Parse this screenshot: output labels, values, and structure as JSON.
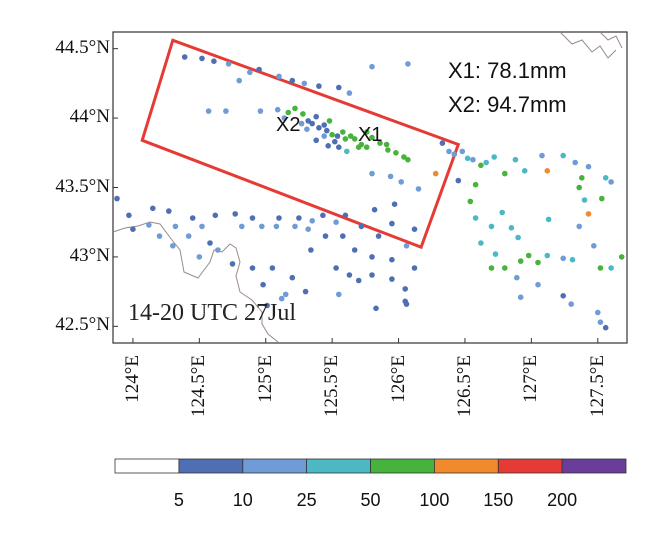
{
  "map": {
    "time_label": "14-20 UTC 27Jul",
    "annotations": [
      {
        "id": "x1",
        "text": "X1: 78.1mm"
      },
      {
        "id": "x2",
        "text": "X2: 94.7mm"
      }
    ],
    "point_labels": [
      "X2",
      "X1"
    ],
    "lat_ticks": [
      "44.5°N",
      "44°N",
      "43.5°N",
      "43°N",
      "42.5°N"
    ],
    "lat_values": [
      44.5,
      44.0,
      43.5,
      43.0,
      42.5
    ],
    "lon_ticks": [
      "124°E",
      "124.5°E",
      "125°E",
      "125.5°E",
      "126°E",
      "126.5°E",
      "127°E",
      "127.5°E"
    ],
    "lon_values": [
      124.0,
      124.5,
      125.0,
      125.5,
      126.0,
      126.5,
      127.0,
      127.5
    ],
    "extent": {
      "lon_min": 123.85,
      "lon_max": 127.72,
      "lat_min": 42.38,
      "lat_max": 44.62
    },
    "box_corners_lonlat": [
      [
        124.3,
        44.56
      ],
      [
        126.45,
        43.81
      ],
      [
        126.17,
        43.07
      ],
      [
        124.07,
        43.84
      ]
    ],
    "colorbar": {
      "thresholds": [
        "5",
        "10",
        "25",
        "50",
        "100",
        "150",
        "200"
      ],
      "colors": [
        "#ffffff",
        "#4f6fb5",
        "#6f9bd6",
        "#4cb8c4",
        "#47b33c",
        "#f08a2c",
        "#e63a35",
        "#6a3d9a"
      ]
    },
    "stations": [
      [
        124.39,
        44.44,
        1
      ],
      [
        124.52,
        44.43,
        1
      ],
      [
        124.61,
        44.41,
        1
      ],
      [
        124.72,
        44.39,
        2
      ],
      [
        124.88,
        44.33,
        2
      ],
      [
        124.95,
        44.35,
        1
      ],
      [
        125.1,
        44.3,
        2
      ],
      [
        125.2,
        44.27,
        1
      ],
      [
        125.29,
        44.25,
        2
      ],
      [
        125.4,
        44.23,
        1
      ],
      [
        125.55,
        44.22,
        1
      ],
      [
        125.63,
        44.18,
        2
      ],
      [
        125.8,
        44.37,
        2
      ],
      [
        126.07,
        44.39,
        2
      ],
      [
        124.8,
        44.27,
        2
      ],
      [
        124.57,
        44.05,
        2
      ],
      [
        124.7,
        44.05,
        2
      ],
      [
        124.96,
        44.05,
        2
      ],
      [
        125.09,
        44.06,
        2
      ],
      [
        125.14,
        44.0,
        2
      ],
      [
        125.17,
        44.04,
        4
      ],
      [
        125.22,
        44.07,
        4
      ],
      [
        125.28,
        44.03,
        4
      ],
      [
        125.32,
        43.98,
        1
      ],
      [
        125.35,
        43.96,
        1
      ],
      [
        125.38,
        44.01,
        1
      ],
      [
        125.4,
        43.93,
        1
      ],
      [
        125.44,
        43.95,
        1
      ],
      [
        125.46,
        43.91,
        1
      ],
      [
        125.48,
        43.98,
        4
      ],
      [
        125.5,
        43.88,
        4
      ],
      [
        125.52,
        43.83,
        1
      ],
      [
        125.54,
        43.87,
        1
      ],
      [
        125.55,
        43.79,
        1
      ],
      [
        125.58,
        43.9,
        4
      ],
      [
        125.6,
        43.85,
        4
      ],
      [
        125.64,
        43.87,
        4
      ],
      [
        125.67,
        43.85,
        4
      ],
      [
        125.7,
        43.79,
        4
      ],
      [
        125.72,
        43.81,
        4
      ],
      [
        125.76,
        43.9,
        4
      ],
      [
        125.8,
        43.86,
        4
      ],
      [
        125.86,
        43.82,
        4
      ],
      [
        125.92,
        43.77,
        4
      ],
      [
        125.98,
        43.75,
        4
      ],
      [
        126.04,
        43.72,
        4
      ],
      [
        126.07,
        43.7,
        4
      ],
      [
        125.31,
        43.92,
        2
      ],
      [
        125.27,
        43.96,
        2
      ],
      [
        125.44,
        43.87,
        2
      ],
      [
        125.61,
        43.76,
        3
      ],
      [
        125.8,
        43.6,
        2
      ],
      [
        125.94,
        43.58,
        2
      ],
      [
        126.02,
        43.54,
        2
      ],
      [
        126.15,
        43.49,
        2
      ],
      [
        125.76,
        43.79,
        4
      ],
      [
        125.91,
        43.81,
        4
      ],
      [
        125.38,
        43.84,
        1
      ],
      [
        125.47,
        43.8,
        1
      ],
      [
        126.33,
        43.82,
        1
      ],
      [
        126.38,
        43.76,
        2
      ],
      [
        126.42,
        43.74,
        2
      ],
      [
        126.48,
        43.76,
        2
      ],
      [
        126.52,
        43.71,
        3
      ],
      [
        126.56,
        43.7,
        2
      ],
      [
        126.62,
        43.66,
        4
      ],
      [
        126.66,
        43.68,
        3
      ],
      [
        126.72,
        43.72,
        3
      ],
      [
        126.8,
        43.6,
        4
      ],
      [
        126.88,
        43.7,
        3
      ],
      [
        126.95,
        43.62,
        3
      ],
      [
        127.08,
        43.73,
        2
      ],
      [
        127.24,
        43.73,
        3
      ],
      [
        127.33,
        43.68,
        2
      ],
      [
        127.43,
        43.65,
        2
      ],
      [
        127.12,
        43.62,
        5
      ],
      [
        127.38,
        43.57,
        4
      ],
      [
        127.36,
        43.5,
        4
      ],
      [
        127.56,
        43.57,
        3
      ],
      [
        127.6,
        43.54,
        2
      ],
      [
        127.53,
        43.42,
        4
      ],
      [
        127.4,
        43.41,
        3
      ],
      [
        127.43,
        43.31,
        5
      ],
      [
        126.28,
        43.6,
        5
      ],
      [
        126.58,
        43.52,
        4
      ],
      [
        126.45,
        43.55,
        1
      ],
      [
        126.54,
        43.4,
        4
      ],
      [
        126.58,
        43.28,
        3
      ],
      [
        126.7,
        43.22,
        3
      ],
      [
        126.78,
        43.32,
        3
      ],
      [
        126.85,
        43.21,
        3
      ],
      [
        126.9,
        43.14,
        3
      ],
      [
        126.62,
        43.1,
        3
      ],
      [
        126.73,
        43.02,
        3
      ],
      [
        126.8,
        42.92,
        4
      ],
      [
        126.92,
        42.97,
        4
      ],
      [
        126.98,
        43.01,
        4
      ],
      [
        127.05,
        42.96,
        4
      ],
      [
        127.12,
        43.01,
        3
      ],
      [
        127.24,
        42.99,
        2
      ],
      [
        127.31,
        42.98,
        3
      ],
      [
        127.52,
        42.92,
        4
      ],
      [
        127.6,
        42.92,
        3
      ],
      [
        127.47,
        43.08,
        2
      ],
      [
        127.68,
        43.0,
        4
      ],
      [
        126.7,
        42.92,
        4
      ],
      [
        126.89,
        42.85,
        2
      ],
      [
        127.05,
        42.8,
        2
      ],
      [
        126.92,
        42.71,
        2
      ],
      [
        127.24,
        42.72,
        1
      ],
      [
        127.3,
        42.66,
        2
      ],
      [
        127.5,
        42.6,
        2
      ],
      [
        127.52,
        42.53,
        2
      ],
      [
        127.56,
        42.49,
        1
      ],
      [
        127.13,
        43.27,
        3
      ],
      [
        127.36,
        43.22,
        2
      ],
      [
        123.88,
        43.42,
        1
      ],
      [
        123.97,
        43.3,
        1
      ],
      [
        124.15,
        43.35,
        1
      ],
      [
        124.27,
        43.33,
        1
      ],
      [
        124.45,
        43.28,
        1
      ],
      [
        124.62,
        43.3,
        1
      ],
      [
        124.77,
        43.31,
        1
      ],
      [
        124.9,
        43.28,
        1
      ],
      [
        125.1,
        43.28,
        1
      ],
      [
        125.25,
        43.28,
        1
      ],
      [
        125.35,
        43.26,
        2
      ],
      [
        125.43,
        43.3,
        1
      ],
      [
        125.53,
        43.25,
        2
      ],
      [
        125.6,
        43.3,
        1
      ],
      [
        125.72,
        43.22,
        1
      ],
      [
        125.82,
        43.34,
        1
      ],
      [
        125.97,
        43.38,
        1
      ],
      [
        126.12,
        43.2,
        1
      ],
      [
        125.95,
        43.24,
        1
      ],
      [
        125.85,
        43.15,
        1
      ],
      [
        124.0,
        43.2,
        1
      ],
      [
        124.12,
        43.23,
        2
      ],
      [
        124.2,
        43.15,
        2
      ],
      [
        124.32,
        43.22,
        2
      ],
      [
        124.42,
        43.15,
        2
      ],
      [
        124.52,
        43.22,
        2
      ],
      [
        124.64,
        43.05,
        2
      ],
      [
        124.82,
        43.22,
        2
      ],
      [
        124.97,
        43.22,
        2
      ],
      [
        125.08,
        43.22,
        2
      ],
      [
        125.22,
        43.22,
        2
      ],
      [
        125.32,
        43.2,
        2
      ],
      [
        125.45,
        43.15,
        1
      ],
      [
        125.58,
        43.15,
        1
      ],
      [
        125.67,
        43.05,
        1
      ],
      [
        125.8,
        43.0,
        1
      ],
      [
        125.95,
        42.98,
        1
      ],
      [
        126.06,
        43.08,
        2
      ],
      [
        126.12,
        42.92,
        1
      ],
      [
        125.34,
        43.05,
        1
      ],
      [
        124.75,
        42.95,
        1
      ],
      [
        124.9,
        42.92,
        1
      ],
      [
        125.05,
        42.92,
        1
      ],
      [
        125.2,
        42.85,
        1
      ],
      [
        125.53,
        42.92,
        1
      ],
      [
        125.63,
        42.87,
        1
      ],
      [
        125.8,
        42.87,
        1
      ],
      [
        125.95,
        42.84,
        1
      ],
      [
        126.05,
        42.77,
        1
      ],
      [
        125.7,
        42.83,
        1
      ],
      [
        126.06,
        42.66,
        1
      ],
      [
        126.05,
        42.68,
        1
      ],
      [
        125.83,
        42.63,
        1
      ],
      [
        125.55,
        42.73,
        2
      ],
      [
        125.3,
        42.75,
        1
      ],
      [
        125.15,
        42.73,
        2
      ],
      [
        125.01,
        42.65,
        1
      ],
      [
        125.12,
        42.7,
        2
      ],
      [
        124.98,
        42.8,
        1
      ],
      [
        124.5,
        43.0,
        2
      ],
      [
        124.3,
        43.08,
        2
      ],
      [
        124.58,
        43.1,
        1
      ]
    ]
  }
}
